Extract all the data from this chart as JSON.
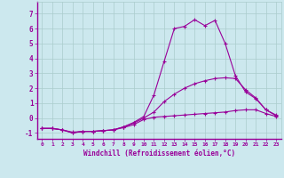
{
  "xlabel": "Windchill (Refroidissement éolien,°C)",
  "bg_color": "#cce8ee",
  "line_color": "#990099",
  "grid_color": "#aacccc",
  "xlim": [
    -0.5,
    23.5
  ],
  "ylim": [
    -1.4,
    7.8
  ],
  "yticks": [
    -1,
    0,
    1,
    2,
    3,
    4,
    5,
    6,
    7
  ],
  "xticks": [
    0,
    1,
    2,
    3,
    4,
    5,
    6,
    7,
    8,
    9,
    10,
    11,
    12,
    13,
    14,
    15,
    16,
    17,
    18,
    19,
    20,
    21,
    22,
    23
  ],
  "line1_x": [
    0,
    1,
    2,
    3,
    4,
    5,
    6,
    7,
    8,
    9,
    10,
    11,
    12,
    13,
    14,
    15,
    16,
    17,
    18,
    19,
    20,
    21,
    22,
    23
  ],
  "line1_y": [
    -0.7,
    -0.7,
    -0.8,
    -1.0,
    -0.9,
    -0.9,
    -0.85,
    -0.8,
    -0.65,
    -0.45,
    -0.1,
    0.05,
    0.1,
    0.15,
    0.2,
    0.25,
    0.3,
    0.35,
    0.4,
    0.5,
    0.55,
    0.55,
    0.3,
    0.1
  ],
  "line2_x": [
    0,
    1,
    2,
    3,
    4,
    5,
    6,
    7,
    8,
    9,
    10,
    11,
    12,
    13,
    14,
    15,
    16,
    17,
    18,
    19,
    20,
    21,
    22,
    23
  ],
  "line2_y": [
    -0.7,
    -0.7,
    -0.8,
    -0.95,
    -0.9,
    -0.9,
    -0.85,
    -0.8,
    -0.6,
    -0.35,
    0.0,
    0.4,
    1.1,
    1.6,
    2.0,
    2.3,
    2.5,
    2.65,
    2.7,
    2.65,
    1.9,
    1.35,
    0.55,
    0.15
  ],
  "line3_x": [
    0,
    1,
    2,
    3,
    4,
    5,
    6,
    7,
    8,
    9,
    10,
    11,
    12,
    13,
    14,
    15,
    16,
    17,
    18,
    19,
    20,
    21,
    22,
    23
  ],
  "line3_y": [
    -0.7,
    -0.7,
    -0.8,
    -1.0,
    -0.9,
    -0.9,
    -0.85,
    -0.8,
    -0.6,
    -0.3,
    0.1,
    1.55,
    3.8,
    6.0,
    6.15,
    6.6,
    6.2,
    6.55,
    5.0,
    2.85,
    1.75,
    1.3,
    0.55,
    0.2
  ]
}
